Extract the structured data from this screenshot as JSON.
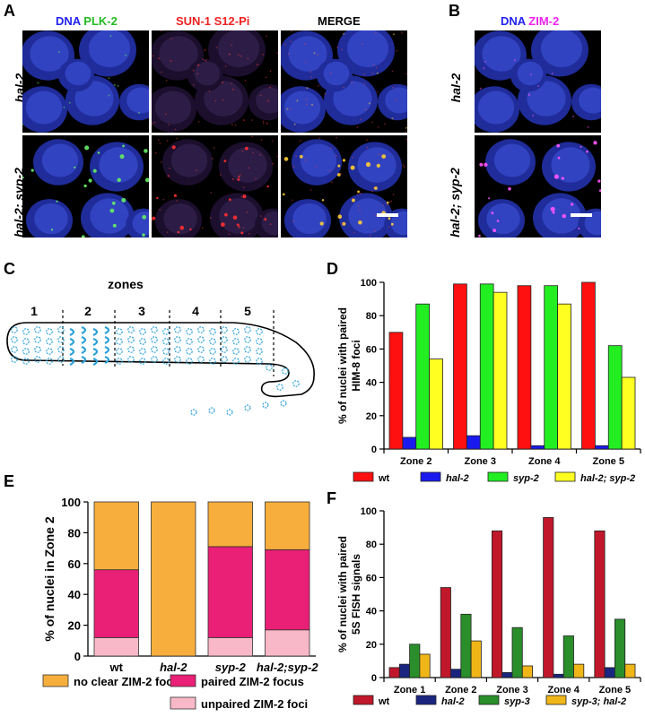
{
  "panels": {
    "A": {
      "label": "A",
      "headers": [
        {
          "parts": [
            {
              "text": "DNA",
              "color": "#2222ee"
            },
            {
              "text": " PLK-2",
              "color": "#22bb22"
            }
          ]
        },
        {
          "parts": [
            {
              "text": "SUN-1 S12-Pi",
              "color": "#ee2222"
            }
          ]
        },
        {
          "parts": [
            {
              "text": "MERGE",
              "color": "#000000"
            }
          ]
        }
      ],
      "rows": [
        "hal-2",
        "hal-2; syp-2"
      ]
    },
    "B": {
      "label": "B",
      "headers": [
        {
          "parts": [
            {
              "text": "DNA",
              "color": "#2222ee"
            },
            {
              "text": " ZIM-2",
              "color": "#ee22ee"
            }
          ]
        }
      ],
      "rows": [
        "hal-2",
        "hal-2; syp-2"
      ]
    },
    "C": {
      "label": "C",
      "title": "zones",
      "zone_numbers": [
        "1",
        "2",
        "3",
        "4",
        "5"
      ]
    },
    "D": {
      "label": "D"
    },
    "E": {
      "label": "E"
    },
    "F": {
      "label": "F"
    }
  },
  "chart_data": [
    {
      "id": "D",
      "type": "bar",
      "categories": [
        "Zone 2",
        "Zone 3",
        "Zone 4",
        "Zone 5"
      ],
      "ylabel": "% of nuclei with paired HIM-8 foci",
      "ylabel_lines": [
        "% of nuclei with paired",
        "HIM-8 foci"
      ],
      "ylim": [
        0,
        100
      ],
      "yticks": [
        "0",
        "20",
        "40",
        "60",
        "80",
        "100"
      ],
      "series": [
        {
          "name": "wt",
          "color": "#ff1010",
          "values": [
            70,
            99,
            98,
            100
          ]
        },
        {
          "name": "hal-2",
          "color": "#1a1aee",
          "values": [
            7,
            8,
            2,
            2
          ]
        },
        {
          "name": "syp-2",
          "color": "#22ee22",
          "values": [
            87,
            99,
            98,
            62
          ]
        },
        {
          "name": "hal-2; syp-2",
          "color": "#ffff22",
          "values": [
            54,
            94,
            87,
            43
          ]
        }
      ],
      "legend_position": "bottom"
    },
    {
      "id": "E",
      "type": "stacked-bar",
      "categories": [
        "wt",
        "hal-2",
        "syp-2",
        "hal-2;syp-2"
      ],
      "ylabel": "% of nuclei in Zone 2",
      "ylim": [
        0,
        100
      ],
      "yticks": [
        "0",
        "20",
        "40",
        "60",
        "80",
        "100"
      ],
      "series": [
        {
          "name": "unpaired ZIM-2 foci",
          "color": "#f9b8c8",
          "values": [
            12,
            0,
            12,
            17
          ]
        },
        {
          "name": "paired ZIM-2 focus",
          "color": "#ea1f76",
          "values": [
            44,
            0,
            59,
            52
          ]
        },
        {
          "name": "no clear ZIM-2 foci",
          "color": "#f7ae3c",
          "values": [
            44,
            100,
            29,
            31
          ]
        }
      ],
      "legend_position": "bottom"
    },
    {
      "id": "F",
      "type": "bar",
      "categories": [
        "Zone 1",
        "Zone 2",
        "Zone 3",
        "Zone 4",
        "Zone 5"
      ],
      "ylabel": "% of nuclei with paired 5S FISH signals",
      "ylabel_lines": [
        "% of nuclei with paired",
        "5S FISH signals"
      ],
      "ylim": [
        0,
        100
      ],
      "yticks": [
        "0",
        "20",
        "40",
        "60",
        "80",
        "100"
      ],
      "series": [
        {
          "name": "wt",
          "color": "#c0182a",
          "values": [
            6,
            54,
            88,
            96,
            88
          ]
        },
        {
          "name": "hal-2",
          "color": "#1a2580",
          "values": [
            8,
            5,
            3,
            2,
            6
          ]
        },
        {
          "name": "syp-3",
          "color": "#2a8e2a",
          "values": [
            20,
            38,
            30,
            25,
            35
          ]
        },
        {
          "name": "syp-3; hal-2",
          "color": "#f0b618",
          "values": [
            14,
            22,
            7,
            8,
            8
          ]
        }
      ],
      "legend_position": "bottom"
    }
  ]
}
